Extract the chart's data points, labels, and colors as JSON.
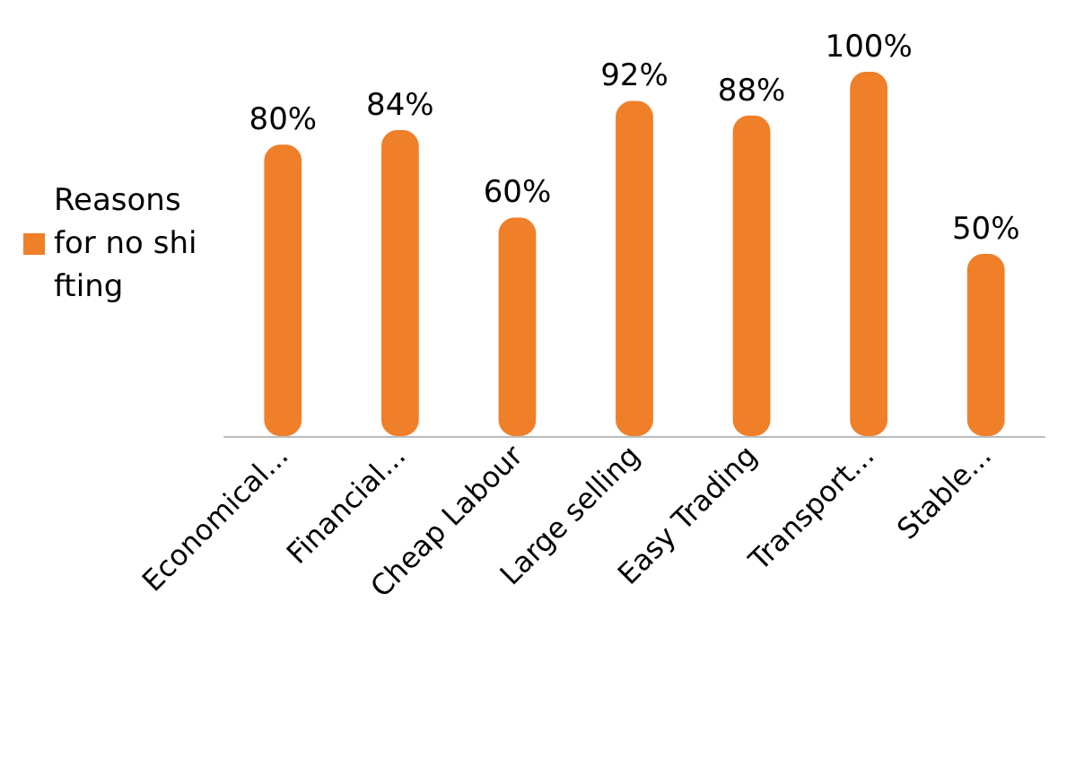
{
  "chart_data": {
    "type": "bar",
    "categories": [
      "Economical...",
      "Financial...",
      "Cheap Labour",
      "Large selling",
      "Easy Trading",
      "Transport...",
      "Stable..."
    ],
    "series": [
      {
        "name": "Reasons for no shifting",
        "color": "#f07f2a",
        "values": [
          80,
          84,
          60,
          92,
          88,
          100,
          50
        ],
        "value_labels": [
          "80%",
          "84%",
          "60%",
          "92%",
          "88%",
          "100%",
          "50%"
        ]
      }
    ],
    "legend": "left",
    "grid": false,
    "tick_labels": "x"
  }
}
